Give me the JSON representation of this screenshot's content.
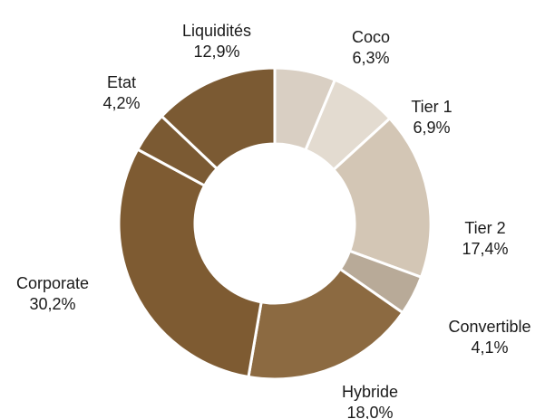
{
  "chart_data": {
    "type": "donut",
    "title": "",
    "series": [
      {
        "name": "Coco",
        "value": 6.3,
        "value_label": "6,3%",
        "color": "#d9cfc3"
      },
      {
        "name": "Tier 1",
        "value": 6.9,
        "value_label": "6,9%",
        "color": "#e3dbd0"
      },
      {
        "name": "Tier 2",
        "value": 17.4,
        "value_label": "17,4%",
        "color": "#d3c6b5"
      },
      {
        "name": "Convertible",
        "value": 4.1,
        "value_label": "4,1%",
        "color": "#b8aa98"
      },
      {
        "name": "Hybride",
        "value": 18.0,
        "value_label": "18,0%",
        "color": "#8c6a41"
      },
      {
        "name": "Corporate",
        "value": 30.2,
        "value_label": "30,2%",
        "color": "#7e5b32"
      },
      {
        "name": "Etat",
        "value": 4.2,
        "value_label": "4,2%",
        "color": "#7b5a33"
      },
      {
        "name": "Liquidités",
        "value": 12.9,
        "value_label": "12,9%",
        "color": "#7b5a33"
      }
    ],
    "start_angle_deg": 0,
    "direction": "clockwise",
    "legend": "none",
    "labels": "outside"
  }
}
